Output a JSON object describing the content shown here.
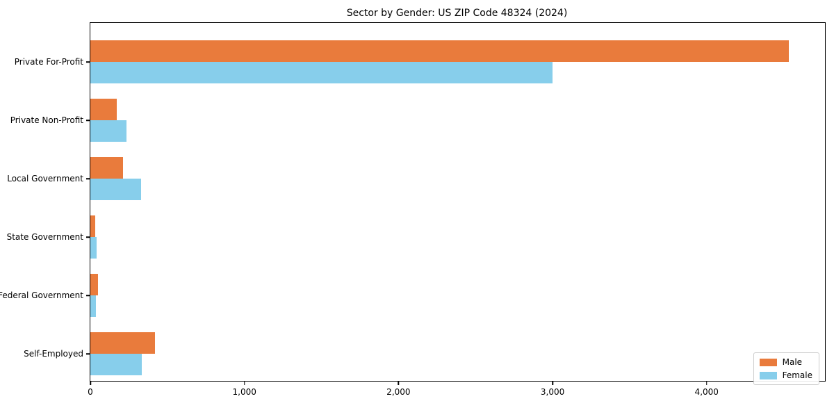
{
  "chart_data": {
    "type": "bar",
    "orientation": "horizontal",
    "title": "Sector by Gender: US ZIP Code 48324 (2024)",
    "categories": [
      "Private For-Profit",
      "Private Non-Profit",
      "Local Government",
      "State Government",
      "Federal Government",
      "Self-Employed"
    ],
    "series": [
      {
        "name": "Male",
        "color": "#E97B3C",
        "values": [
          4535,
          170,
          210,
          30,
          50,
          420
        ]
      },
      {
        "name": "Female",
        "color": "#87CEEB",
        "values": [
          3000,
          235,
          330,
          40,
          35,
          335
        ]
      }
    ],
    "xlabel": "",
    "ylabel": "",
    "xlim": [
      0,
      4768
    ],
    "xticks": [
      0,
      1000,
      2000,
      3000,
      4000
    ],
    "xtick_labels": [
      "0",
      "1,000",
      "2,000",
      "3,000",
      "4,000"
    ],
    "grid": false,
    "legend": {
      "position": "lower right",
      "items": [
        "Male",
        "Female"
      ]
    }
  }
}
